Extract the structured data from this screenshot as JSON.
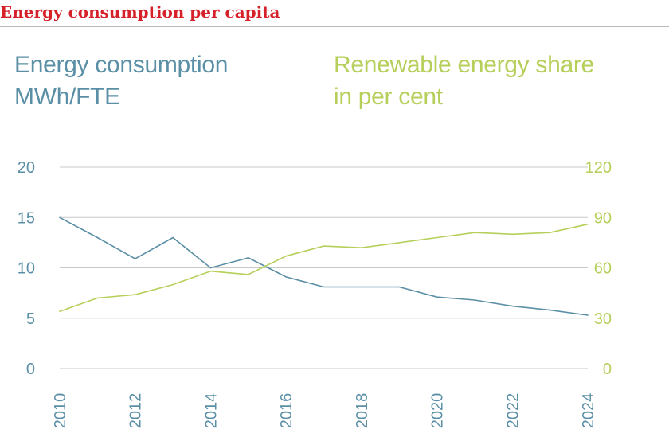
{
  "header": {
    "title": "Energy consumption per capita"
  },
  "colors": {
    "title": "#d6202a",
    "consumption": "#5a8fa6",
    "renewable": "#b6cf5a",
    "grid": "#c8c8c8",
    "rule": "#b9b9b9"
  },
  "chart_data": {
    "type": "line",
    "title": "Energy consumption per capita",
    "left_axis": {
      "label_line1": "Energy consumption",
      "label_line2": "MWh/FTE",
      "range": [
        0,
        20
      ],
      "ticks": [
        "0",
        "5",
        "10",
        "15",
        "20"
      ]
    },
    "right_axis": {
      "label_line1": "Renewable energy share",
      "label_line2": "in per cent",
      "range": [
        0,
        120
      ],
      "ticks": [
        "0",
        "30",
        "60",
        "90",
        "120"
      ]
    },
    "x_axis": {
      "range": [
        2010,
        2024
      ],
      "ticks": [
        "2010",
        "2012",
        "2014",
        "2016",
        "2018",
        "2020",
        "2022",
        "2024"
      ]
    },
    "grid": true,
    "series": [
      {
        "axis": "left",
        "x": [
          2010,
          2011,
          2012,
          2013,
          2014,
          2015,
          2016,
          2017,
          2018,
          2019,
          2020,
          2021,
          2022,
          2023,
          2024
        ],
        "values": [
          15,
          13,
          10.9,
          13,
          10,
          11,
          9.1,
          8.1,
          8.1,
          8.1,
          7.1,
          6.8,
          6.2,
          5.8,
          5.3
        ]
      },
      {
        "axis": "right",
        "x": [
          2010,
          2011,
          2012,
          2013,
          2014,
          2015,
          2016,
          2017,
          2018,
          2019,
          2020,
          2021,
          2022,
          2023,
          2024
        ],
        "values": [
          34,
          42,
          44,
          50,
          58,
          56,
          67,
          73,
          72,
          75,
          78,
          81,
          80,
          81,
          86
        ]
      }
    ]
  }
}
